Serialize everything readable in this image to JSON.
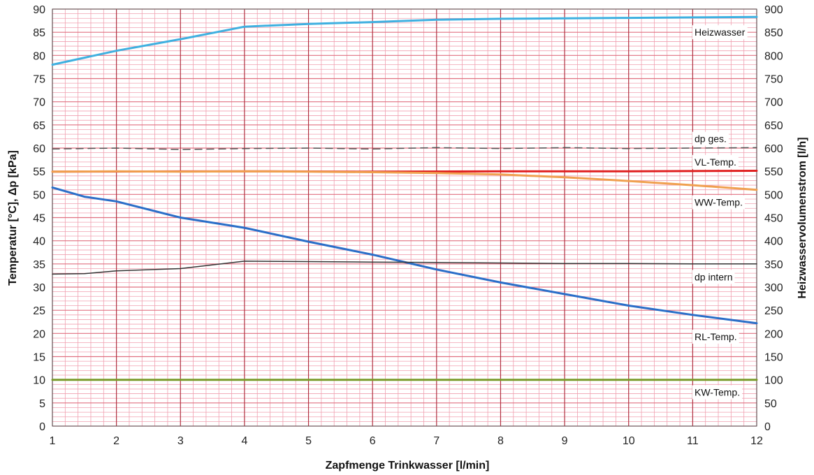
{
  "chart_data": {
    "type": "line",
    "title": "",
    "xlabel": "Zapfmenge Trinkwasser [l/min]",
    "ylabel": "Temperatur [°C], Δp [kPa]",
    "y2label": "Heizwasservolumenstrom [l/h]",
    "xlim": [
      1,
      12
    ],
    "ylim": [
      0,
      90
    ],
    "y2lim": [
      0,
      900
    ],
    "x_ticks": [
      1,
      2,
      3,
      4,
      5,
      6,
      7,
      8,
      9,
      10,
      11,
      12
    ],
    "y_ticks": [
      0,
      5,
      10,
      15,
      20,
      25,
      30,
      35,
      40,
      45,
      50,
      55,
      60,
      65,
      70,
      75,
      80,
      85,
      90
    ],
    "y2_ticks": [
      0,
      50,
      100,
      150,
      200,
      250,
      300,
      350,
      400,
      450,
      500,
      550,
      600,
      650,
      700,
      750,
      800,
      850,
      900
    ],
    "grid": true,
    "series": [
      {
        "name": "Heizwasser",
        "axis": "y2",
        "color": "#3fb0e0",
        "width": 3,
        "dash": "",
        "x": [
          1,
          1.5,
          2,
          3,
          4,
          5,
          6,
          7,
          8,
          9,
          10,
          11,
          12
        ],
        "y": [
          780,
          795,
          810,
          835,
          862,
          868,
          872,
          877,
          879,
          880,
          881,
          882,
          883
        ]
      },
      {
        "name": "dp ges.",
        "axis": "y",
        "color": "#555555",
        "width": 1.5,
        "dash": "10,7",
        "x": [
          1,
          2,
          3,
          4,
          5,
          6,
          7,
          8,
          9,
          10,
          11,
          12
        ],
        "y": [
          59.8,
          60.0,
          59.7,
          59.9,
          60.0,
          59.8,
          60.1,
          59.9,
          60.1,
          59.9,
          60.0,
          60.1
        ]
      },
      {
        "name": "VL-Temp.",
        "axis": "y",
        "color": "#e02020",
        "width": 3,
        "dash": "",
        "x": [
          1,
          4,
          6,
          8,
          10,
          12
        ],
        "y": [
          54.9,
          55.0,
          54.9,
          55.0,
          55.0,
          55.1
        ]
      },
      {
        "name": "WW-Temp.",
        "axis": "y",
        "color": "#f0a050",
        "width": 3,
        "dash": "",
        "x": [
          1,
          2,
          3,
          4,
          5,
          6,
          7,
          8,
          9,
          10,
          11,
          12
        ],
        "y": [
          54.9,
          55.0,
          54.9,
          55.0,
          54.9,
          54.8,
          54.6,
          54.3,
          53.7,
          52.9,
          52.0,
          51.0
        ]
      },
      {
        "name": "RL-Temp.",
        "axis": "y",
        "color": "#2a6ec8",
        "width": 3,
        "dash": "",
        "x": [
          1,
          1.5,
          2,
          3,
          4,
          5,
          6,
          7,
          8,
          9,
          10,
          11,
          12
        ],
        "y": [
          51.5,
          49.5,
          48.5,
          45.0,
          42.8,
          39.8,
          37.0,
          33.8,
          31.0,
          28.5,
          26.0,
          24.0,
          22.2
        ]
      },
      {
        "name": "dp intern",
        "axis": "y",
        "color": "#333333",
        "width": 1.5,
        "dash": "",
        "x": [
          1,
          1.5,
          2,
          3,
          4,
          5,
          6,
          7,
          8,
          9,
          10,
          11,
          12
        ],
        "y": [
          32.8,
          32.9,
          33.5,
          34.0,
          35.6,
          35.5,
          35.4,
          35.3,
          35.2,
          35.1,
          35.1,
          35.0,
          35.0
        ]
      },
      {
        "name": "KW-Temp.",
        "axis": "y",
        "color": "#7a9a2a",
        "width": 3,
        "dash": "",
        "x": [
          1,
          12
        ],
        "y": [
          10,
          10
        ]
      }
    ],
    "labels": [
      {
        "text": "Heizwasser",
        "anchor_y": 85,
        "axis": "y"
      },
      {
        "text": "dp ges.",
        "anchor_y": 62,
        "axis": "y"
      },
      {
        "text": "VL-Temp.",
        "anchor_y": 57,
        "axis": "y"
      },
      {
        "text": "WW-Temp.",
        "anchor_y": 48.3,
        "axis": "y"
      },
      {
        "text": "dp intern",
        "anchor_y": 32.2,
        "axis": "y"
      },
      {
        "text": "RL-Temp.",
        "anchor_y": 19.3,
        "axis": "y"
      },
      {
        "text": "KW-Temp.",
        "anchor_y": 7.3,
        "axis": "y"
      }
    ],
    "colors": {
      "minor_grid": "#f0a0b0",
      "major_x_grid": "#b03040",
      "major_y_grid": "#e07080",
      "frame": "#555555"
    }
  }
}
